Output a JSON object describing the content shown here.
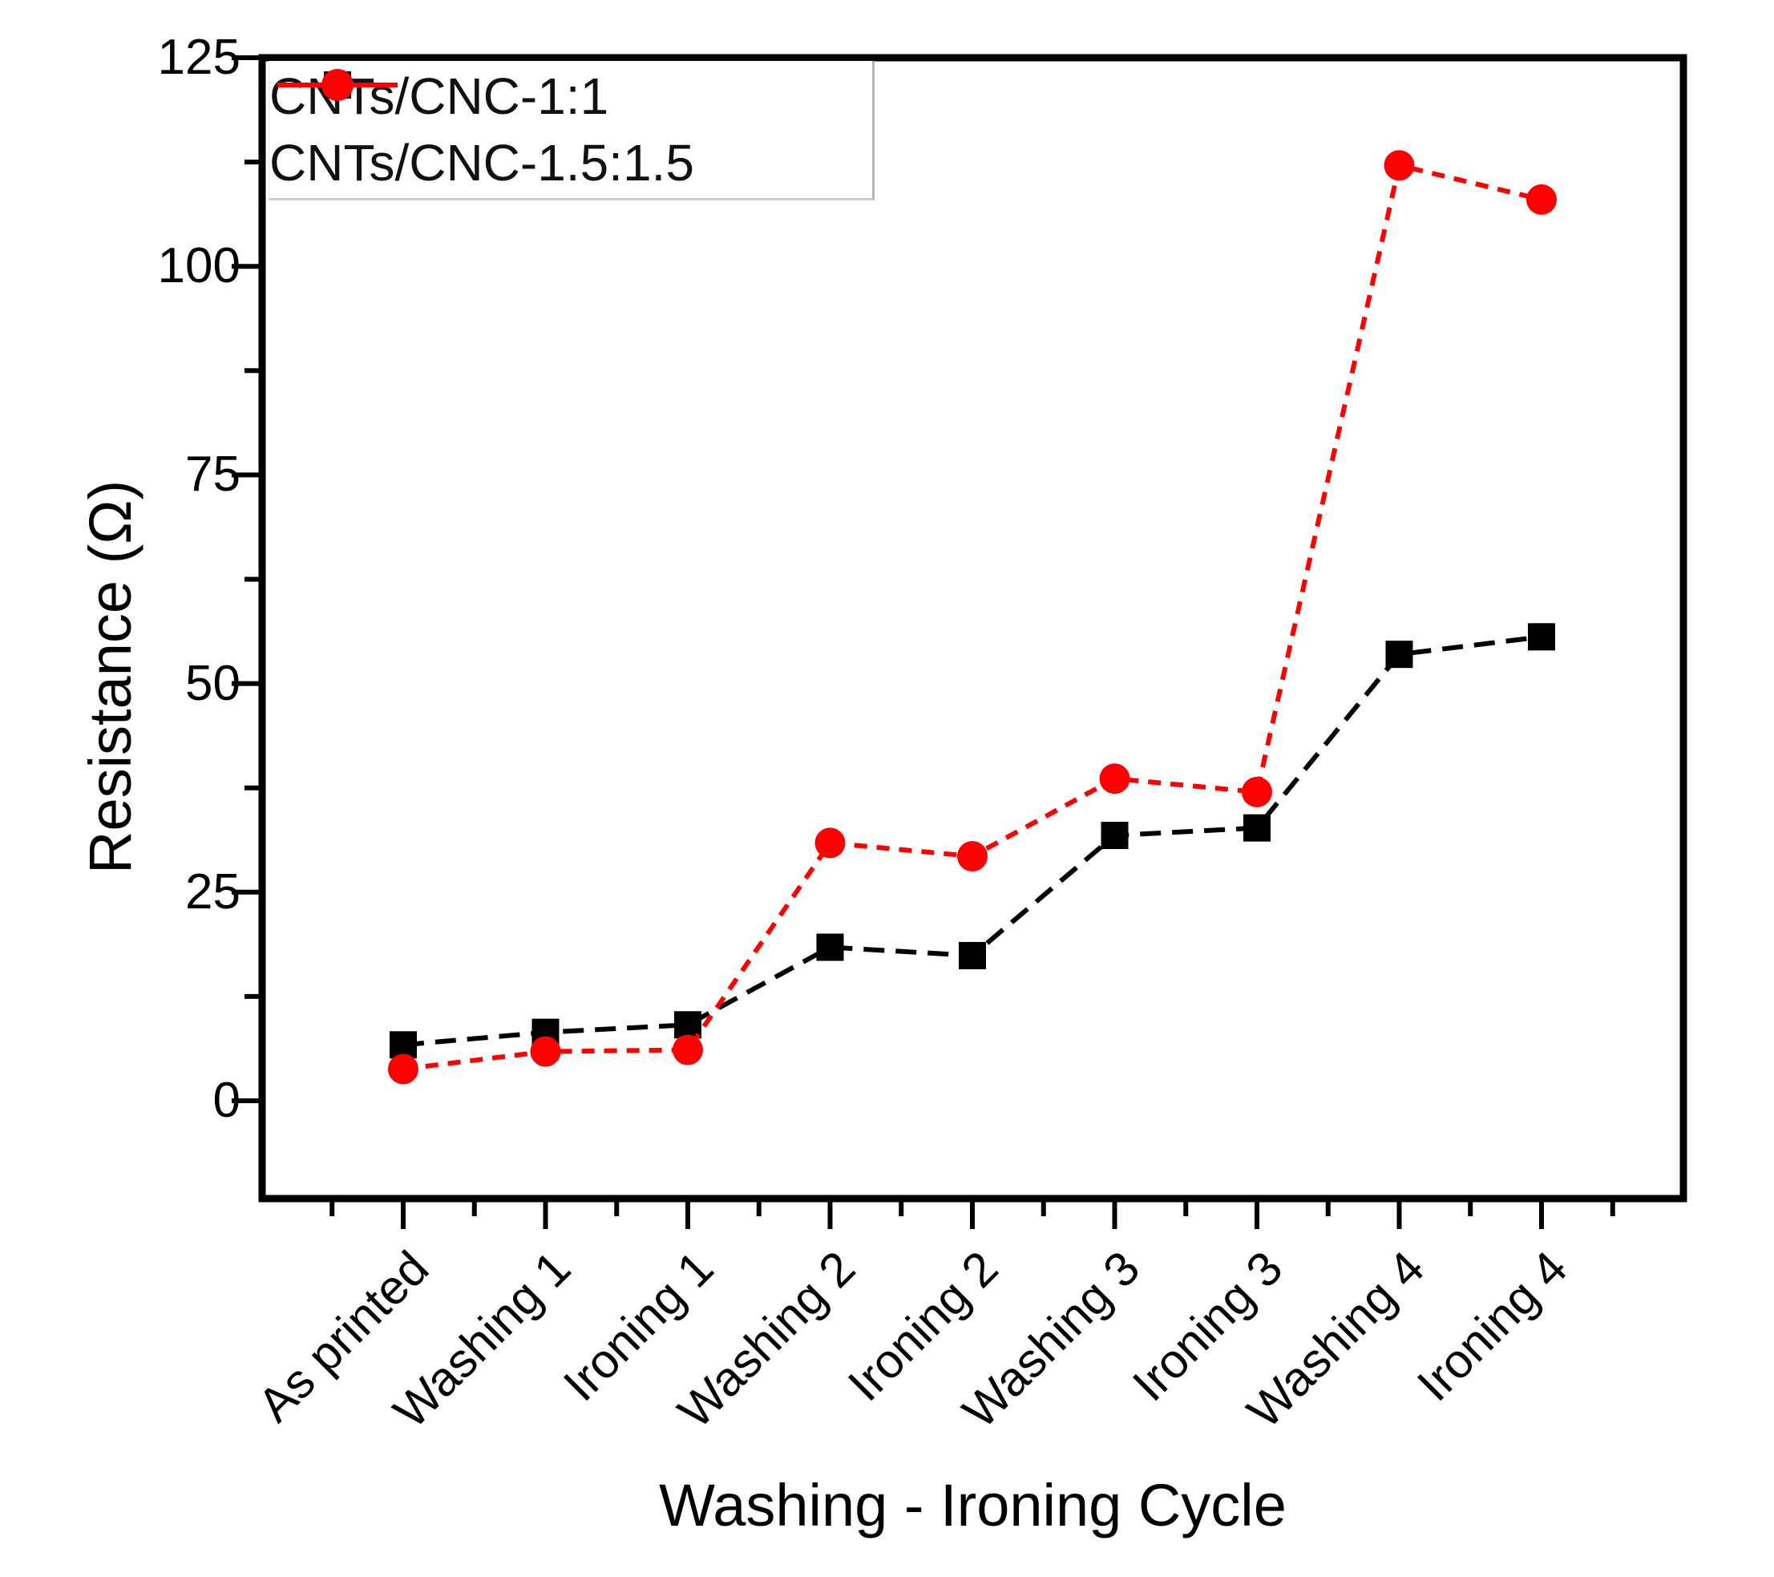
{
  "chart_data": {
    "type": "line",
    "title": "",
    "xlabel": "Washing - Ironing Cycle",
    "ylabel": "Resistance (Ω)",
    "categories": [
      "As printed",
      "Washing 1",
      "Ironing 1",
      "Washing 2",
      "Ironing 2",
      "Washing 3",
      "Ironing 3",
      "Washing 4",
      "Ironing 4"
    ],
    "series": [
      {
        "name": "CNTs/CNC-1:1",
        "color": "#000000",
        "marker": "square",
        "line_style": "dashed",
        "values": [
          6.7,
          8.2,
          9.1,
          18.4,
          17.4,
          31.8,
          32.7,
          53.5,
          55.6
        ]
      },
      {
        "name": "CNTs/CNC-1.5:1.5",
        "color": "#fe0000",
        "marker": "circle",
        "line_style": "dashed",
        "values": [
          3.8,
          5.9,
          6.1,
          30.9,
          29.3,
          38.6,
          37.0,
          112.1,
          108.0
        ]
      }
    ],
    "yticks": [
      0,
      25,
      50,
      75,
      100,
      125
    ],
    "ylim": [
      -12,
      125
    ],
    "grid": false,
    "legend_position": "top-left",
    "frame": true
  }
}
